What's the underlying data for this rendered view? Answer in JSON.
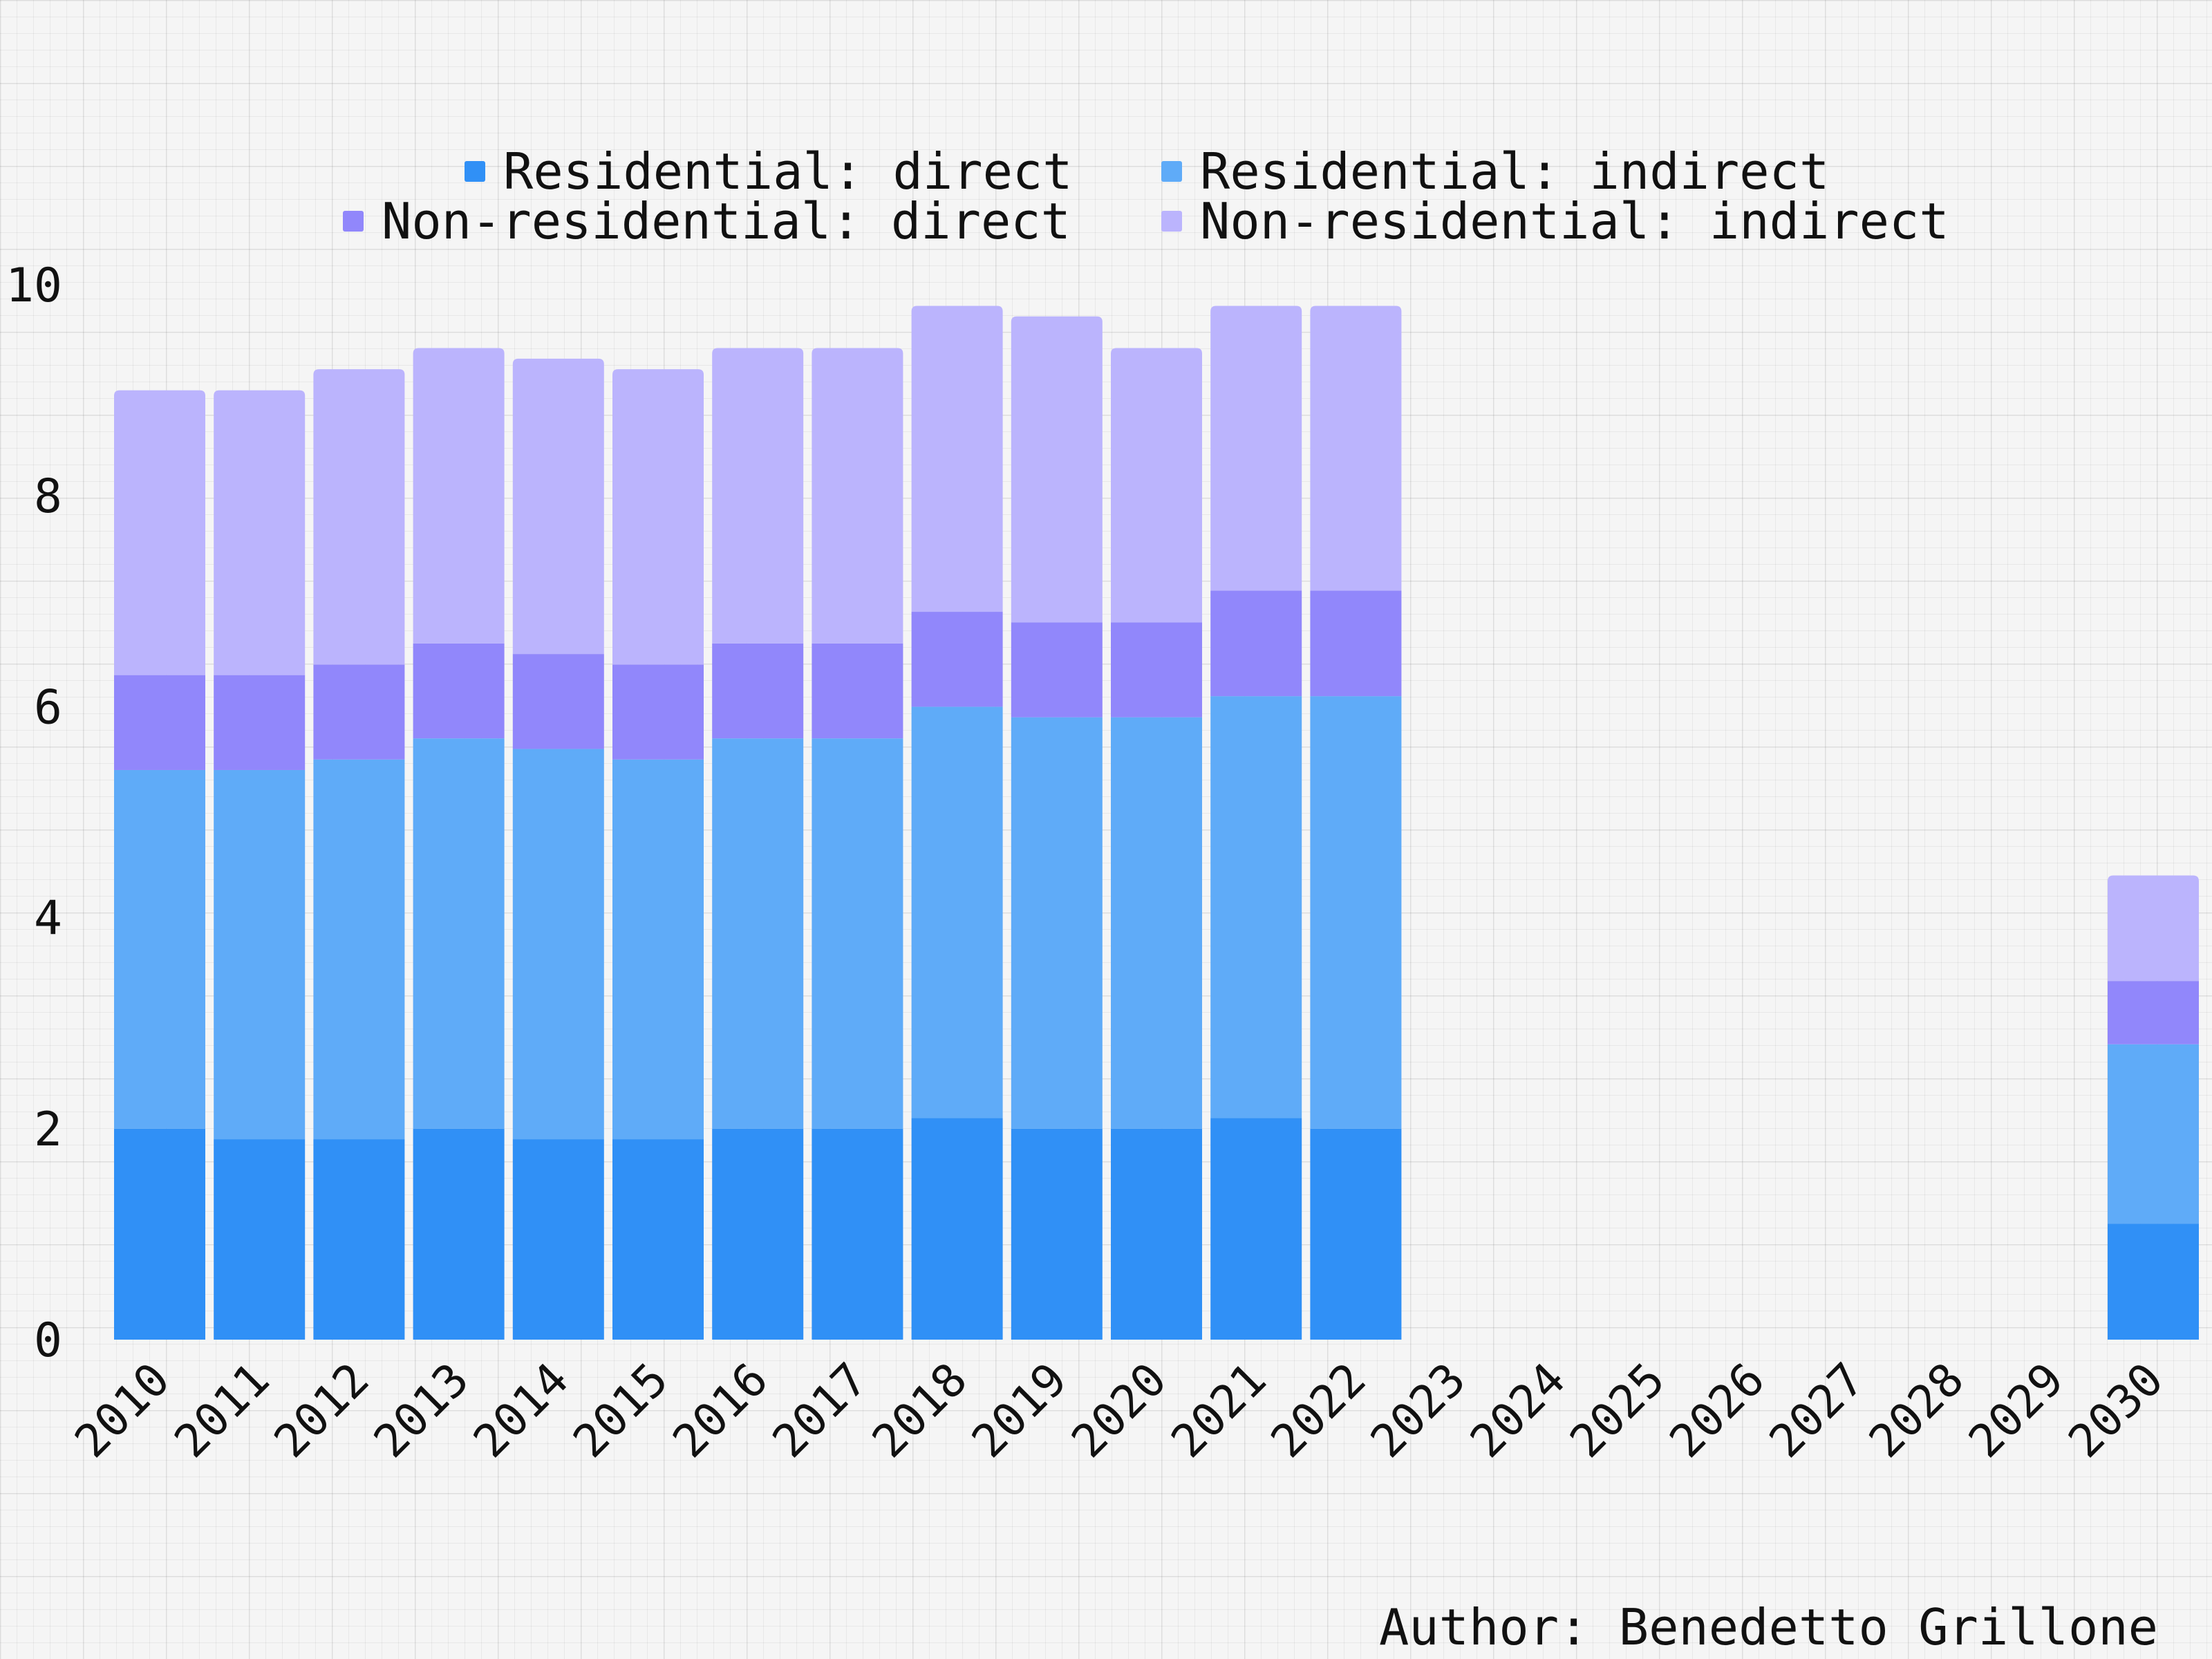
{
  "colors": {
    "background": "#f5f5f5",
    "residential_direct": "#3090f6",
    "residential_indirect": "#5fabf8",
    "nonresidential_direct": "#9187fb",
    "nonresidential_indirect": "#bbb4fd"
  },
  "legend": {
    "items": [
      {
        "label": "Residential: direct",
        "color": "#3090f6"
      },
      {
        "label": "Residential: indirect",
        "color": "#5fabf8"
      },
      {
        "label": "Non-residential: direct",
        "color": "#9187fb"
      },
      {
        "label": "Non-residential: indirect",
        "color": "#bbb4fd"
      }
    ]
  },
  "footer": {
    "author": "Author: Benedetto Grillone"
  },
  "chart_data": {
    "type": "bar",
    "stacked": true,
    "title": "",
    "xlabel": "",
    "ylabel": "",
    "ylim": [
      0,
      10
    ],
    "yticks": [
      0,
      2,
      4,
      6,
      8,
      10
    ],
    "grid": true,
    "legend_position": "top",
    "categories": [
      "2010",
      "2011",
      "2012",
      "2013",
      "2014",
      "2015",
      "2016",
      "2017",
      "2018",
      "2019",
      "2020",
      "2021",
      "2022",
      "2023",
      "2024",
      "2025",
      "2026",
      "2027",
      "2028",
      "2029",
      "2030"
    ],
    "series": [
      {
        "name": "Residential: direct",
        "color": "#3090f6",
        "values": [
          2.0,
          1.9,
          1.9,
          2.0,
          1.9,
          1.9,
          2.0,
          2.0,
          2.1,
          2.0,
          2.0,
          2.1,
          2.0,
          null,
          null,
          null,
          null,
          null,
          null,
          null,
          1.1
        ]
      },
      {
        "name": "Residential: indirect",
        "color": "#5fabf8",
        "values": [
          3.4,
          3.5,
          3.6,
          3.7,
          3.7,
          3.6,
          3.7,
          3.7,
          3.9,
          3.9,
          3.9,
          4.0,
          4.1,
          null,
          null,
          null,
          null,
          null,
          null,
          null,
          1.7
        ]
      },
      {
        "name": "Non-residential: direct",
        "color": "#9187fb",
        "values": [
          0.9,
          0.9,
          0.9,
          0.9,
          0.9,
          0.9,
          0.9,
          0.9,
          0.9,
          0.9,
          0.9,
          1.0,
          1.0,
          null,
          null,
          null,
          null,
          null,
          null,
          null,
          0.6
        ]
      },
      {
        "name": "Non-residential: indirect",
        "color": "#bbb4fd",
        "values": [
          2.7,
          2.7,
          2.8,
          2.8,
          2.8,
          2.8,
          2.8,
          2.8,
          2.9,
          2.9,
          2.6,
          2.7,
          2.7,
          null,
          null,
          null,
          null,
          null,
          null,
          null,
          1.0
        ]
      }
    ]
  }
}
